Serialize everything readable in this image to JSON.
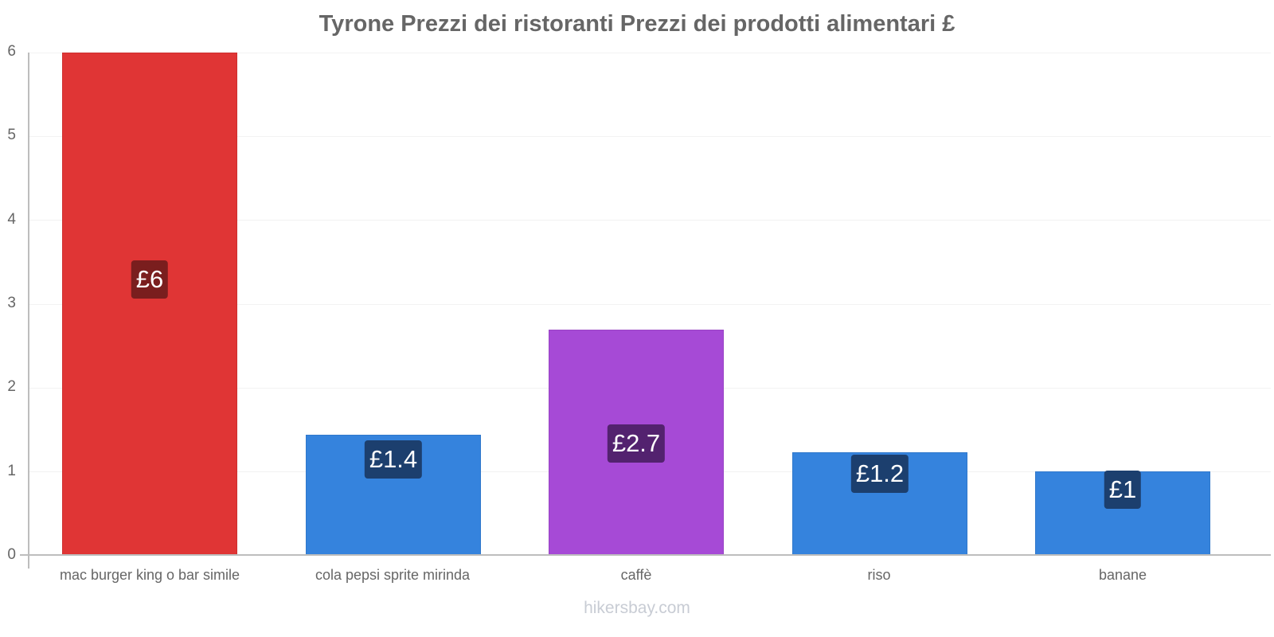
{
  "chart_data": {
    "type": "bar",
    "title": "Tyrone Prezzi dei ristoranti Prezzi dei prodotti alimentari £",
    "xlabel": "",
    "ylabel": "",
    "ylim": [
      0,
      6
    ],
    "yticks": [
      "0",
      "1",
      "2",
      "3",
      "4",
      "5",
      "6"
    ],
    "grid": true,
    "legend": null,
    "categories": [
      "mac burger king o bar simile",
      "cola pepsi sprite mirinda",
      "caffè",
      "riso",
      "banane"
    ],
    "values": [
      6,
      1.44,
      2.69,
      1.23,
      1.0
    ],
    "data_labels": [
      "£6",
      "£1.4",
      "£2.7",
      "£1.2",
      "£1"
    ],
    "bar_colors": [
      "#e03535",
      "#3583dd",
      "#a64ad6",
      "#3583dd",
      "#3583dd"
    ],
    "label_bg_colors": [
      "#7a1e1e",
      "#1c3f6e",
      "#53226f",
      "#1c3f6e",
      "#1c3f6e"
    ]
  },
  "footer": {
    "watermark": "hikersbay.com"
  }
}
